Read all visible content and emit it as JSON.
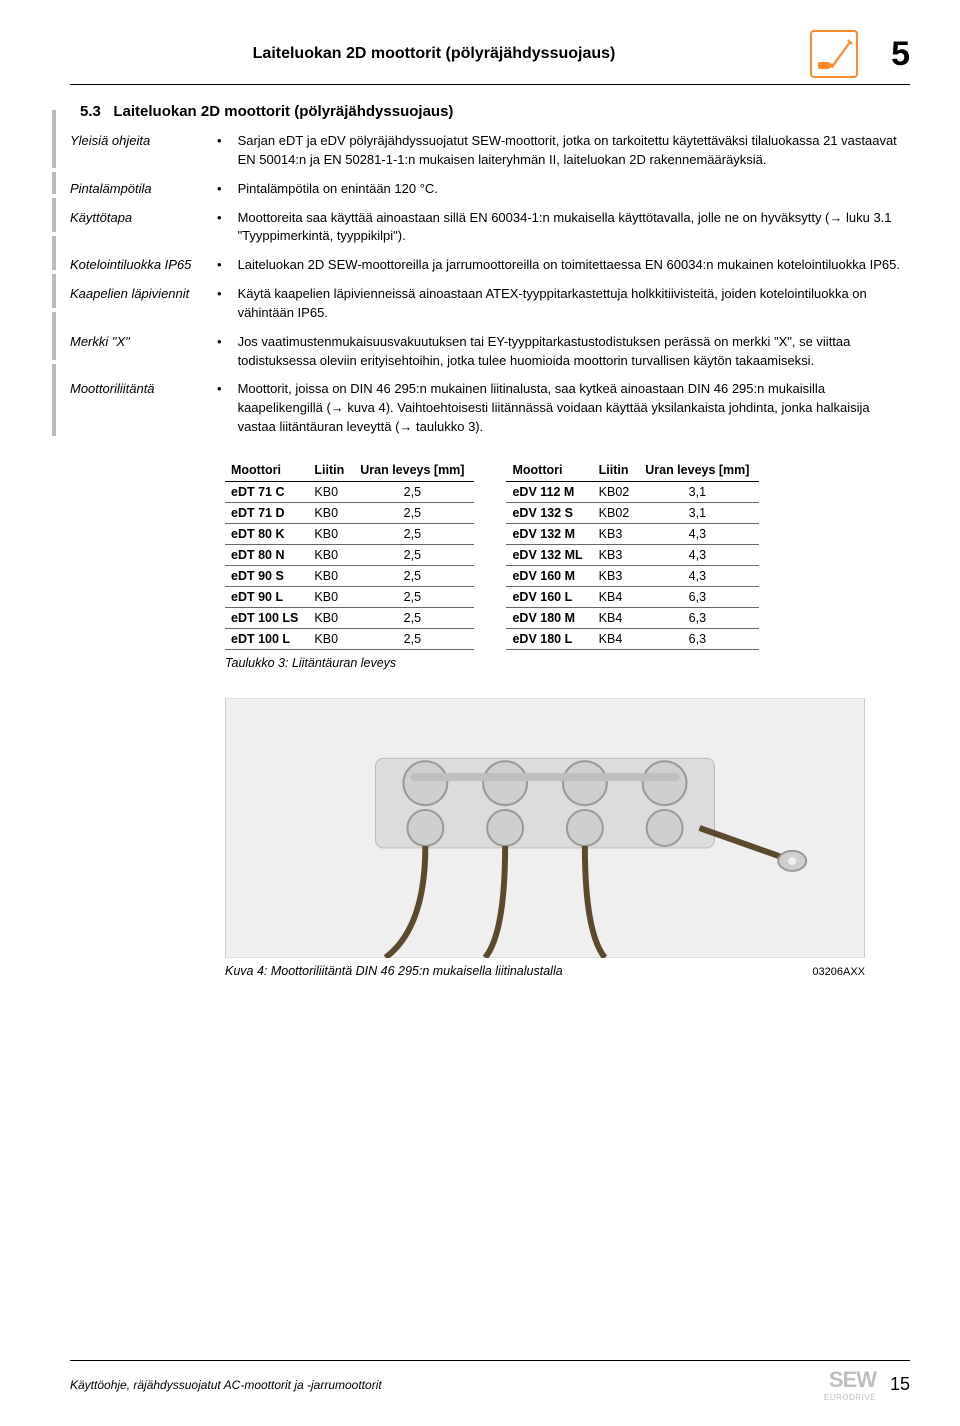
{
  "header": {
    "title": "Laiteluokan 2D moottorit (pölyräjähdyssuojaus)",
    "chapter": "5"
  },
  "section": {
    "number": "5.3",
    "title": "Laiteluokan 2D moottorit (pölyräjähdyssuojaus)"
  },
  "items": [
    {
      "label": "Yleisiä ohjeita",
      "text": "Sarjan eDT ja eDV pölyräjähdyssuojatut SEW-moottorit, jotka on tarkoitettu käytettäväksi tilaluokassa 21 vastaavat EN 50014:n ja EN 50281-1-1:n mukaisen laiteryhmän II, laiteluokan 2D rakennemääräyksiä."
    },
    {
      "label": "Pintalämpötila",
      "text": "Pintalämpötila on enintään 120 °C."
    },
    {
      "label": "Käyttötapa",
      "text": "Moottoreita saa käyttää ainoastaan sillä EN 60034-1:n mukaisella käyttötavalla, jolle ne on hyväksytty (→ luku 3.1 \"Tyyppimerkintä, tyyppikilpi\")."
    },
    {
      "label": "Kotelointiluokka IP65",
      "text": "Laiteluokan 2D SEW-moottoreilla ja jarrumoottoreilla on toimitettaessa EN 60034:n mukainen kotelointiluokka IP65."
    },
    {
      "label": "Kaapelien läpiviennit",
      "text": "Käytä kaapelien läpivienneissä ainoastaan ATEX-tyyppitarkastettuja holkkitiivisteitä, joiden kotelointiluokka on vähintään IP65."
    },
    {
      "label": "Merkki \"X\"",
      "text": "Jos vaatimustenmukaisuusvakuutuksen tai EY-tyyppitarkastustodistuksen perässä on merkki \"X\", se viittaa todistuksessa oleviin erityisehtoihin, jotka tulee huomioida moottorin turvallisen käytön takaamiseksi."
    },
    {
      "label": "Moottoriliitäntä",
      "text": "Moottorit, joissa on DIN 46 295:n mukainen liitinalusta, saa kytkeä ainoastaan DIN 46 295:n mukaisilla kaapelikengillä (→ kuva 4). Vaihtoehtoisesti liitännässä voidaan käyttää yksilankaista johdinta, jonka halkaisija vastaa liitäntäuran leveyttä (→ taulukko 3)."
    }
  ],
  "table_headers": {
    "motor": "Moottori",
    "conn": "Liitin",
    "width": "Uran leveys [mm]"
  },
  "table_left": [
    {
      "m": "eDT 71 C",
      "c": "KB0",
      "w": "2,5"
    },
    {
      "m": "eDT 71 D",
      "c": "KB0",
      "w": "2,5"
    },
    {
      "m": "eDT 80 K",
      "c": "KB0",
      "w": "2,5"
    },
    {
      "m": "eDT 80 N",
      "c": "KB0",
      "w": "2,5"
    },
    {
      "m": "eDT 90 S",
      "c": "KB0",
      "w": "2,5"
    },
    {
      "m": "eDT 90 L",
      "c": "KB0",
      "w": "2,5"
    },
    {
      "m": "eDT 100 LS",
      "c": "KB0",
      "w": "2,5"
    },
    {
      "m": "eDT 100 L",
      "c": "KB0",
      "w": "2,5"
    }
  ],
  "table_right": [
    {
      "m": "eDV 112 M",
      "c": "KB02",
      "w": "3,1"
    },
    {
      "m": "eDV 132 S",
      "c": "KB02",
      "w": "3,1"
    },
    {
      "m": "eDV 132 M",
      "c": "KB3",
      "w": "4,3"
    },
    {
      "m": "eDV 132 ML",
      "c": "KB3",
      "w": "4,3"
    },
    {
      "m": "eDV 160 M",
      "c": "KB3",
      "w": "4,3"
    },
    {
      "m": "eDV 160 L",
      "c": "KB4",
      "w": "6,3"
    },
    {
      "m": "eDV 180 M",
      "c": "KB4",
      "w": "6,3"
    },
    {
      "m": "eDV 180 L",
      "c": "KB4",
      "w": "6,3"
    }
  ],
  "table_caption": "Taulukko 3: Liitäntäuran leveys",
  "figure": {
    "caption": "Kuva 4: Moottoriliitäntä DIN 46 295:n mukaisella liitinalustalla",
    "code": "03206AXX",
    "placeholder": "[ photo: terminal block DIN 46 295 ]"
  },
  "footer": {
    "text": "Käyttöohje, räjähdyssuojatut AC-moottorit ja -jarrumoottorit",
    "page": "15",
    "brand": "SEW",
    "brand_sub": "EURODRIVE"
  },
  "colors": {
    "icon_border": "#ff8a2c",
    "icon_fill": "#ff8a2c",
    "side_bar": "#bcbcbc",
    "logo_grey": "#bfbfbf"
  },
  "side_bar_heights": [
    58,
    22,
    34,
    34,
    34,
    48,
    72
  ]
}
